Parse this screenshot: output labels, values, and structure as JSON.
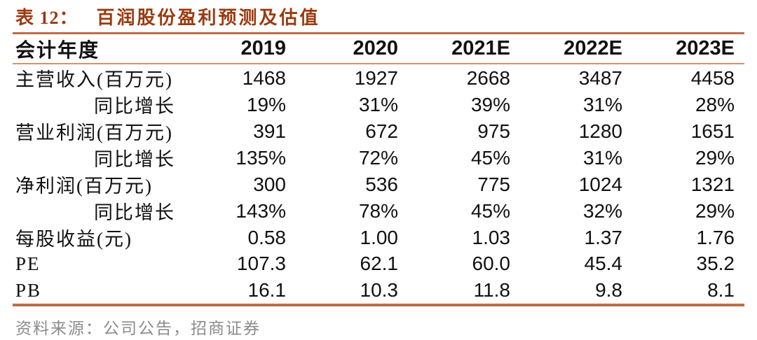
{
  "title": {
    "label": "表 12：",
    "text": "百润股份盈利预测及估值"
  },
  "table": {
    "header": [
      "会计年度",
      "2019",
      "2020",
      "2021E",
      "2022E",
      "2023E"
    ],
    "rows": [
      {
        "label": "主营收入(百万元)",
        "values": [
          "1468",
          "1927",
          "2668",
          "3487",
          "4458"
        ]
      },
      {
        "label": "同比增长",
        "values": [
          "19%",
          "31%",
          "39%",
          "31%",
          "28%"
        ]
      },
      {
        "label": "营业利润(百万元)",
        "values": [
          "391",
          "672",
          "975",
          "1280",
          "1651"
        ]
      },
      {
        "label": "同比增长",
        "values": [
          "135%",
          "72%",
          "45%",
          "31%",
          "29%"
        ]
      },
      {
        "label": "净利润(百万元)",
        "values": [
          "300",
          "536",
          "775",
          "1024",
          "1321"
        ]
      },
      {
        "label": "同比增长",
        "values": [
          "143%",
          "78%",
          "45%",
          "32%",
          "29%"
        ]
      },
      {
        "label": "每股收益(元)",
        "values": [
          "0.58",
          "1.00",
          "1.03",
          "1.37",
          "1.76"
        ]
      },
      {
        "label": "PE",
        "values": [
          "107.3",
          "62.1",
          "60.0",
          "45.4",
          "35.2"
        ]
      },
      {
        "label": "PB",
        "values": [
          "16.1",
          "10.3",
          "11.8",
          "9.8",
          "8.1"
        ]
      }
    ]
  },
  "source": "资料来源：公司公告，招商证券",
  "colors": {
    "accent": "#9B3A10",
    "rule": "#C06C4A",
    "rule_light": "#D8906F",
    "source_text": "#8B8B8B"
  }
}
